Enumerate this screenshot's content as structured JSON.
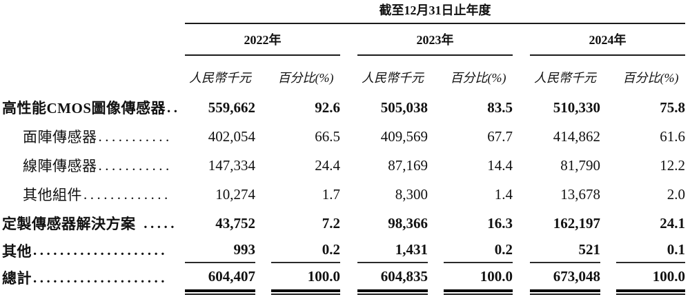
{
  "document": {
    "table_title": "截至12月31日止年度",
    "years": [
      "2022年",
      "2023年",
      "2024年"
    ],
    "column_headers": {
      "amount": "人民幣千元",
      "percent": "百分比(%)"
    },
    "rows": [
      {
        "label": "高性能CMOS圖像傳感器",
        "dots": "..",
        "indent": false,
        "bold": true,
        "values": [
          "559,662",
          "92.6",
          "505,038",
          "83.5",
          "510,330",
          "75.8"
        ]
      },
      {
        "label": "面陣傳感器",
        "dots": "...........",
        "indent": true,
        "bold": false,
        "values": [
          "402,054",
          "66.5",
          "409,569",
          "67.7",
          "414,862",
          "61.6"
        ]
      },
      {
        "label": "線陣傳感器",
        "dots": "...........",
        "indent": true,
        "bold": false,
        "values": [
          "147,334",
          "24.4",
          "87,169",
          "14.4",
          "81,790",
          "12.2"
        ]
      },
      {
        "label": "其他組件",
        "dots": ".............",
        "indent": true,
        "bold": false,
        "values": [
          "10,274",
          "1.7",
          "8,300",
          "1.4",
          "13,678",
          "2.0"
        ]
      },
      {
        "label": "定製傳感器解決方案",
        "dots": " .....",
        "indent": false,
        "bold": true,
        "values": [
          "43,752",
          "7.2",
          "98,366",
          "16.3",
          "162,197",
          "24.1"
        ]
      },
      {
        "label": "其他",
        "dots": "....................",
        "indent": false,
        "bold": true,
        "values": [
          "993",
          "0.2",
          "1,431",
          "0.2",
          "521",
          "0.1"
        ]
      },
      {
        "label": "總計",
        "dots": "....................",
        "indent": false,
        "bold": true,
        "values": [
          "604,407",
          "100.0",
          "604,835",
          "100.0",
          "673,048",
          "100.0"
        ]
      }
    ]
  }
}
